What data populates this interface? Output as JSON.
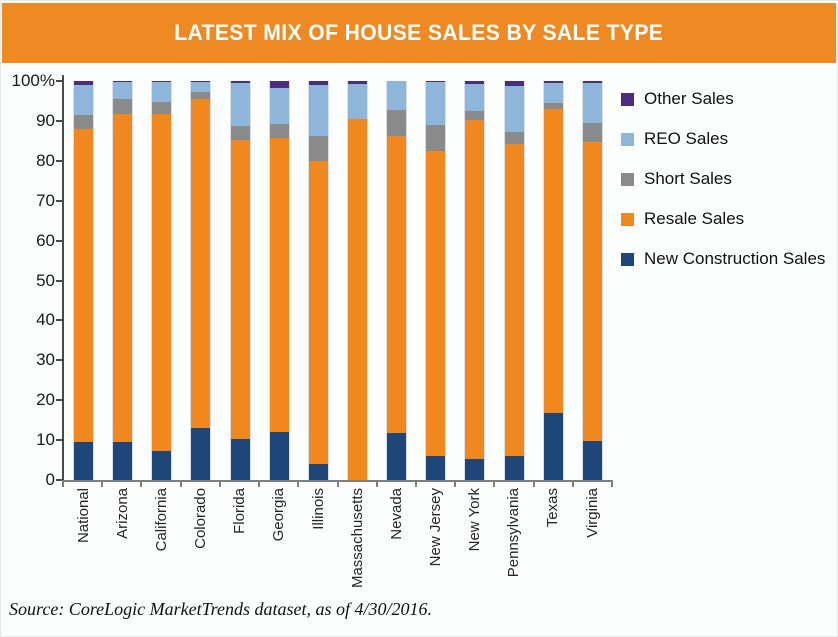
{
  "header": {
    "title": "LATEST MIX OF HOUSE SALES BY SALE TYPE",
    "background_color": "#EF8A22",
    "title_color": "#FFFFFF"
  },
  "source_note": "Source: CoreLogic MarketTrends dataset, as of 4/30/2016.",
  "colors": {
    "banner_orange": "#EF8A22",
    "axis_dark": "#4A4A4A",
    "axis_gray": "#7E7E7E",
    "other_sales": "#4B2D7F",
    "reo_sales": "#8DB6DA",
    "short_sales": "#8A8A8A",
    "resale_sales": "#F0881D",
    "new_construction_sales": "#1F4678"
  },
  "chart_data": {
    "type": "bar",
    "stacked": true,
    "unit": "percent",
    "grid": false,
    "legend_position": "right",
    "ylim": [
      0,
      100
    ],
    "categories": [
      "National",
      "Arizona",
      "California",
      "Colorado",
      "Florida",
      "Georgia",
      "Illinois",
      "Massachusetts",
      "Nevada",
      "New Jersey",
      "New York",
      "Pennsylvania",
      "Texas",
      "Virginia"
    ],
    "series": [
      {
        "name": "New Construction Sales",
        "color": "#1F4678",
        "values": [
          9.5,
          9.5,
          7.3,
          13.0,
          10.3,
          12.1,
          4.0,
          0.0,
          11.9,
          6.1,
          5.2,
          6.1,
          16.8,
          9.7
        ]
      },
      {
        "name": "Resale Sales",
        "color": "#F0881D",
        "values": [
          78.5,
          82.2,
          84.4,
          82.5,
          74.9,
          73.5,
          76.0,
          90.5,
          74.3,
          76.3,
          85.0,
          78.0,
          76.1,
          75.1
        ]
      },
      {
        "name": "Short Sales",
        "color": "#8A8A8A",
        "values": [
          3.5,
          3.8,
          3.0,
          1.7,
          3.5,
          3.7,
          6.3,
          0.0,
          6.5,
          6.6,
          2.2,
          3.2,
          1.7,
          4.6
        ]
      },
      {
        "name": "REO Sales",
        "color": "#8DB6DA",
        "values": [
          7.5,
          4.2,
          5.0,
          2.5,
          10.7,
          9.0,
          12.7,
          8.8,
          7.2,
          10.7,
          6.8,
          11.4,
          4.9,
          10.0
        ]
      },
      {
        "name": "Other Sales",
        "color": "#4B2D7F",
        "values": [
          1.0,
          0.3,
          0.3,
          0.3,
          0.6,
          1.7,
          1.0,
          0.7,
          0.1,
          0.3,
          0.8,
          1.3,
          0.5,
          0.6
        ]
      }
    ],
    "legend": [
      {
        "label": "Other Sales",
        "color": "#4B2D7F"
      },
      {
        "label": "REO Sales",
        "color": "#8DB6DA"
      },
      {
        "label": "Short Sales",
        "color": "#8A8A8A"
      },
      {
        "label": "Resale Sales",
        "color": "#F0881D"
      },
      {
        "label": "New Construction Sales",
        "color": "#1F4678"
      }
    ],
    "yticks": [
      {
        "label": "100%",
        "value": 100
      },
      {
        "label": "90",
        "value": 90
      },
      {
        "label": "80",
        "value": 80
      },
      {
        "label": "70",
        "value": 70
      },
      {
        "label": "60",
        "value": 60
      },
      {
        "label": "50",
        "value": 50
      },
      {
        "label": "40",
        "value": 40
      },
      {
        "label": "30",
        "value": 30
      },
      {
        "label": "20",
        "value": 20
      },
      {
        "label": "10",
        "value": 10
      },
      {
        "label": "0",
        "value": 0
      }
    ]
  }
}
